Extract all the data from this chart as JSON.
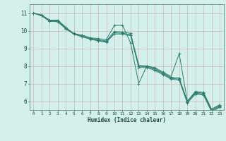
{
  "xlabel": "Humidex (Indice chaleur)",
  "ylabel": "",
  "background_color": "#d4f0eb",
  "grid_color": "#b8ddd8",
  "line_color": "#2e7d6e",
  "xlim": [
    -0.5,
    23.5
  ],
  "ylim": [
    5.5,
    11.5
  ],
  "xticks": [
    0,
    1,
    2,
    3,
    4,
    5,
    6,
    7,
    8,
    9,
    10,
    11,
    12,
    13,
    14,
    15,
    16,
    17,
    18,
    19,
    20,
    21,
    22,
    23
  ],
  "yticks": [
    6,
    7,
    8,
    9,
    10,
    11
  ],
  "series": [
    [
      11.0,
      10.9,
      10.6,
      10.6,
      10.2,
      9.8,
      9.75,
      9.6,
      9.55,
      9.5,
      10.3,
      10.3,
      9.3,
      7.0,
      8.0,
      7.9,
      7.65,
      7.4,
      8.7,
      6.0,
      6.55,
      6.5,
      5.55,
      5.8
    ],
    [
      11.0,
      10.85,
      10.55,
      10.55,
      10.15,
      9.85,
      9.72,
      9.58,
      9.48,
      9.42,
      9.95,
      9.92,
      9.85,
      8.05,
      8.0,
      7.85,
      7.6,
      7.35,
      7.32,
      6.0,
      6.5,
      6.45,
      5.5,
      5.75
    ],
    [
      11.0,
      10.85,
      10.55,
      10.55,
      10.12,
      9.82,
      9.68,
      9.55,
      9.45,
      9.38,
      9.88,
      9.85,
      9.78,
      7.98,
      7.95,
      7.8,
      7.55,
      7.3,
      7.25,
      5.95,
      6.45,
      6.4,
      5.45,
      5.7
    ],
    [
      11.0,
      10.85,
      10.55,
      10.5,
      10.1,
      9.8,
      9.65,
      9.52,
      9.42,
      9.35,
      9.82,
      9.8,
      9.72,
      7.92,
      7.9,
      7.75,
      7.5,
      7.25,
      7.2,
      5.9,
      6.4,
      6.35,
      5.4,
      5.65
    ]
  ]
}
